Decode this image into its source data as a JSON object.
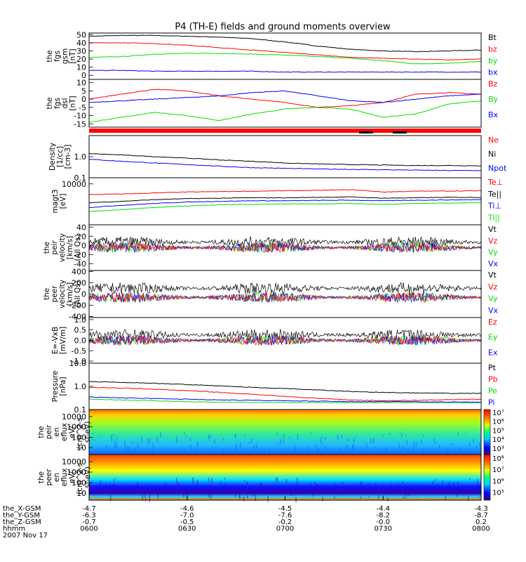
{
  "title": "P4 (TH-E) fields and ground moments overview",
  "colors": {
    "black": "#000000",
    "red": "#ff0000",
    "green": "#00e000",
    "blue": "#0000ff"
  },
  "chart_data": {
    "type": "line",
    "x_ticks": [
      "0600",
      "0630",
      "0700",
      "0730",
      "0800"
    ],
    "orbit_rows": [
      {
        "label": "the_X-GSM",
        "values": [
          "-4.7",
          "-4.6",
          "-4.5",
          "-4.4",
          "-4.3"
        ]
      },
      {
        "label": "the_Y-GSM",
        "values": [
          "-6.3",
          "-7.0",
          "-7.6",
          "-8.2",
          "-8.7"
        ]
      },
      {
        "label": "the_Z-GSM",
        "values": [
          "-0.7",
          "-0.5",
          "-0.2",
          "-0.0",
          "0.2"
        ]
      },
      {
        "label": "hhmm",
        "values": [
          "0600",
          "0630",
          "0700",
          "0730",
          "0800"
        ]
      }
    ],
    "date": "2007 Nov 17",
    "panels": [
      {
        "id": "fgs-gsm",
        "ylabel": [
          "the",
          "fgs",
          "gsm",
          "[nT]"
        ],
        "scale": "lin",
        "ylim": [
          -5,
          52
        ],
        "ticks": [
          "50",
          "40",
          "30",
          "20",
          "10",
          "0"
        ],
        "legend": [
          {
            "name": "Bt",
            "color": "black"
          },
          {
            "name": "bz",
            "color": "red"
          },
          {
            "name": "by",
            "color": "green"
          },
          {
            "name": "bx",
            "color": "blue"
          }
        ],
        "series": [
          {
            "name": "Bt",
            "color": "black",
            "values": [
              48,
              49,
              49,
              48,
              47,
              45,
              41,
              36,
              32,
              30,
              29,
              30,
              31
            ]
          },
          {
            "name": "bz",
            "color": "red",
            "values": [
              40,
              40,
              39,
              37,
              34,
              31,
              28,
              25,
              22,
              21,
              20,
              19,
              20
            ]
          },
          {
            "name": "by",
            "color": "green",
            "values": [
              22,
              23,
              26,
              27,
              27,
              26,
              25,
              23,
              21,
              18,
              14,
              15,
              17
            ]
          },
          {
            "name": "bx",
            "color": "blue",
            "values": [
              6,
              6,
              5,
              5,
              5,
              5,
              4,
              4,
              4,
              4,
              4,
              4,
              4
            ]
          }
        ]
      },
      {
        "id": "fgs-dsl",
        "ylabel": [
          "the",
          "fgs",
          "dsl",
          "[nT]"
        ],
        "scale": "lin",
        "ylim": [
          -17,
          12
        ],
        "ticks": [
          "10",
          "5",
          "0",
          "-5",
          "-10",
          "-15"
        ],
        "legend": [
          {
            "name": "Bz",
            "color": "red"
          },
          {
            "name": "By",
            "color": "green"
          },
          {
            "name": "Bx",
            "color": "blue"
          }
        ],
        "series": [
          {
            "name": "Bz",
            "color": "red",
            "values": [
              0,
              3,
              6,
              5,
              2,
              0,
              -2,
              -5,
              -4,
              -2,
              3,
              4,
              3
            ]
          },
          {
            "name": "By",
            "color": "green",
            "values": [
              -14,
              -11,
              -8,
              -10,
              -13,
              -9,
              -6,
              -5,
              -6,
              -11,
              -9,
              -3,
              -1
            ]
          },
          {
            "name": "Bx",
            "color": "blue",
            "values": [
              -2,
              -1,
              0,
              1,
              2,
              4,
              5,
              2,
              -1,
              -2,
              0,
              2,
              3
            ]
          }
        ]
      },
      {
        "id": "density",
        "ylabel": [
          "Density",
          "[1/cc]",
          "[cm-3]"
        ],
        "scale": "log",
        "ylim": [
          0.1,
          10
        ],
        "ticks": [
          "1.0",
          "0.1"
        ],
        "legend": [
          {
            "name": "Ne",
            "color": "red"
          },
          {
            "name": "Ni",
            "color": "black"
          },
          {
            "name": "Npot",
            "color": "blue"
          }
        ],
        "series": [
          {
            "name": "Ni",
            "color": "black",
            "values": [
              1.4,
              1.2,
              1.0,
              0.85,
              0.7,
              0.6,
              0.5,
              0.45,
              0.42,
              0.4,
              0.38,
              0.38,
              0.37
            ]
          },
          {
            "name": "Npot",
            "color": "blue",
            "values": [
              0.75,
              0.6,
              0.5,
              0.42,
              0.35,
              0.3,
              0.28,
              0.26,
              0.25,
              0.24,
              0.23,
              0.22,
              0.22
            ]
          }
        ]
      },
      {
        "id": "magt3",
        "ylabel": [
          "magt3",
          "[eV]"
        ],
        "scale": "log",
        "ylim": [
          100,
          20000
        ],
        "ticks": [
          "10000"
        ],
        "legend": [
          {
            "name": "Te⊥",
            "color": "red"
          },
          {
            "name": "Te||",
            "color": "black"
          },
          {
            "name": "Ti⊥",
            "color": "blue"
          },
          {
            "name": "Ti||",
            "color": "green"
          }
        ],
        "series": [
          {
            "name": "Te⊥",
            "color": "red",
            "values": [
              3000,
              3200,
              3600,
              4000,
              4200,
              4400,
              4600,
              4800,
              5200,
              4000,
              4400,
              4500,
              4600
            ]
          },
          {
            "name": "Te||",
            "color": "black",
            "values": [
              1200,
              1400,
              1700,
              1900,
              2000,
              2100,
              2100,
              2200,
              2300,
              2000,
              2100,
              2200,
              2200
            ]
          },
          {
            "name": "Ti⊥",
            "color": "blue",
            "values": [
              700,
              900,
              1100,
              1300,
              1400,
              1500,
              1500,
              1550,
              1600,
              1500,
              1600,
              1650,
              1700
            ]
          },
          {
            "name": "Ti||",
            "color": "green",
            "values": [
              450,
              550,
              700,
              850,
              950,
              1000,
              1050,
              1050,
              1100,
              1000,
              1100,
              1150,
              1200
            ]
          }
        ]
      },
      {
        "id": "peir-vel",
        "ylabel": [
          "the",
          "peir",
          "velocity",
          "[km/s]",
          "(All Qs)"
        ],
        "scale": "lin",
        "ylim": [
          -55,
          45
        ],
        "ticks": [
          "40",
          "20",
          "0",
          "-20",
          "-40"
        ],
        "legend": [
          {
            "name": "Vt",
            "color": "black"
          },
          {
            "name": "Vz",
            "color": "red"
          },
          {
            "name": "Vy",
            "color": "green"
          },
          {
            "name": "Vx",
            "color": "blue"
          }
        ],
        "noise": true
      },
      {
        "id": "peer-vel",
        "ylabel": [
          "the",
          "peer",
          "velocity",
          "[km/s]",
          "(All Qs)"
        ],
        "scale": "lin",
        "ylim": [
          -420,
          420
        ],
        "ticks": [
          "400",
          "200",
          "0",
          "-200",
          "-400"
        ],
        "legend": [
          {
            "name": "Vt",
            "color": "black"
          },
          {
            "name": "Vz",
            "color": "red"
          },
          {
            "name": "Vy",
            "color": "green"
          },
          {
            "name": "Vx",
            "color": "blue"
          }
        ],
        "noise": true
      },
      {
        "id": "efield",
        "ylabel": [
          "E=-VxB",
          "[mV/m]"
        ],
        "scale": "lin",
        "ylim": [
          -1.1,
          1.1
        ],
        "ticks": [
          "1.0",
          "0.5",
          "0.0",
          "-0.5",
          "-1.0"
        ],
        "legend": [
          {
            "name": "Ez",
            "color": "red"
          },
          {
            "name": "Ey",
            "color": "green"
          },
          {
            "name": "Ex",
            "color": "blue"
          }
        ],
        "noise": true
      },
      {
        "id": "pressure",
        "ylabel": [
          "Pressure",
          "[nPa]"
        ],
        "scale": "log",
        "ylim": [
          0.1,
          10
        ],
        "ticks": [
          "10.0",
          "1.0",
          "0.1"
        ],
        "legend": [
          {
            "name": "Pt",
            "color": "black"
          },
          {
            "name": "Pb",
            "color": "red"
          },
          {
            "name": "Pe",
            "color": "green"
          },
          {
            "name": "Pi",
            "color": "blue"
          }
        ],
        "series": [
          {
            "name": "Pt",
            "color": "black",
            "values": [
              1.6,
              1.5,
              1.35,
              1.2,
              1.05,
              0.9,
              0.8,
              0.7,
              0.6,
              0.55,
              0.52,
              0.5,
              0.5
            ]
          },
          {
            "name": "Pb",
            "color": "red",
            "values": [
              0.9,
              0.85,
              0.75,
              0.65,
              0.55,
              0.45,
              0.37,
              0.3,
              0.26,
              0.24,
              0.25,
              0.27,
              0.28
            ]
          },
          {
            "name": "Pe",
            "color": "green",
            "values": [
              0.28,
              0.26,
              0.24,
              0.22,
              0.21,
              0.2,
              0.2,
              0.2,
              0.2,
              0.2,
              0.2,
              0.2,
              0.2
            ]
          },
          {
            "name": "Pi",
            "color": "blue",
            "values": [
              0.35,
              0.32,
              0.3,
              0.28,
              0.26,
              0.25,
              0.24,
              0.23,
              0.22,
              0.22,
              0.22,
              0.21,
              0.21
            ]
          }
        ]
      },
      {
        "id": "peir-eflux",
        "ylabel": [
          "the",
          "peir",
          "en",
          "eflux",
          "eV/",
          "(cm^2-s-",
          "sr-eV)"
        ],
        "scale": "log",
        "kind": "spectrogram",
        "ticks": [
          "10000",
          "1000",
          "100",
          "10"
        ],
        "colorbar": {
          "ticks": [
            "10⁷",
            "10⁶",
            "10⁵",
            "10⁴",
            "10³"
          ]
        }
      },
      {
        "id": "peer-eflux",
        "ylabel": [
          "the",
          "peer",
          "en",
          "eflux",
          "eV/",
          "(cm^2-s-",
          "sr-eV)"
        ],
        "scale": "log",
        "kind": "spectrogram",
        "ticks": [
          "10000",
          "1000",
          "100",
          "10"
        ],
        "colorbar": {
          "ticks": [
            "10⁸",
            "10⁷",
            "10⁶",
            "10⁵"
          ]
        }
      }
    ]
  }
}
